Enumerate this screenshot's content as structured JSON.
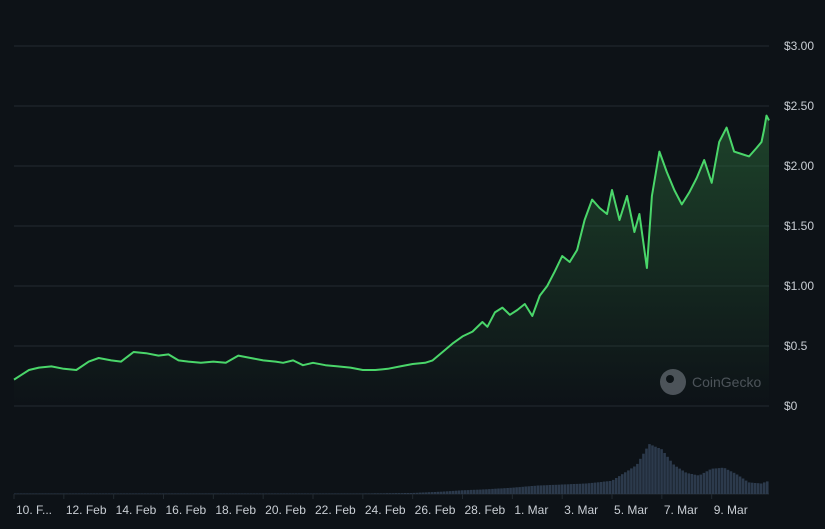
{
  "watermark": {
    "text": "CoinGecko",
    "icon": "coingecko-logo-icon"
  },
  "colors": {
    "background": "#0d1217",
    "gridline": "#222a31",
    "line": "#4ad66a",
    "area_top": "#2b6b3a",
    "volume": "#2c3a4c",
    "axis_text": "#c9ced4"
  },
  "chart_data": {
    "type": "line",
    "title": "",
    "xlabel": "",
    "ylabel": "",
    "ylim": [
      0,
      3.0
    ],
    "y_tick_labels": [
      {
        "value": 3.0,
        "label": "$3.00"
      },
      {
        "value": 2.5,
        "label": "$2.50"
      },
      {
        "value": 2.0,
        "label": "$2.00"
      },
      {
        "value": 1.5,
        "label": "$1.50"
      },
      {
        "value": 1.0,
        "label": "$1.00"
      },
      {
        "value": 0.5,
        "label": "$0.5"
      },
      {
        "value": 0.0,
        "label": "$0"
      }
    ],
    "xlim": [
      0,
      30.3
    ],
    "x_tick_labels": [
      {
        "x": 0,
        "label": "10. F..."
      },
      {
        "x": 2,
        "label": "12. Feb"
      },
      {
        "x": 4,
        "label": "14. Feb"
      },
      {
        "x": 6,
        "label": "16. Feb"
      },
      {
        "x": 8,
        "label": "18. Feb"
      },
      {
        "x": 10,
        "label": "20. Feb"
      },
      {
        "x": 12,
        "label": "22. Feb"
      },
      {
        "x": 14,
        "label": "24. Feb"
      },
      {
        "x": 16,
        "label": "26. Feb"
      },
      {
        "x": 18,
        "label": "28. Feb"
      },
      {
        "x": 20,
        "label": "1. Mar"
      },
      {
        "x": 22,
        "label": "3. Mar"
      },
      {
        "x": 24,
        "label": "5. Mar"
      },
      {
        "x": 26,
        "label": "7. Mar"
      },
      {
        "x": 28,
        "label": "9. Mar"
      }
    ],
    "series": [
      {
        "kind": "price",
        "x": [
          0,
          0.3,
          0.6,
          1.0,
          1.5,
          2.0,
          2.5,
          3.0,
          3.4,
          3.9,
          4.3,
          4.8,
          5.3,
          5.8,
          6.2,
          6.6,
          7.0,
          7.5,
          8.0,
          8.5,
          9.0,
          9.5,
          10.0,
          10.5,
          10.8,
          11.2,
          11.6,
          12.0,
          12.5,
          13.0,
          13.5,
          14.0,
          14.5,
          15.0,
          15.5,
          16.0,
          16.5,
          16.8,
          17.2,
          17.6,
          18.0,
          18.4,
          18.8,
          19.0,
          19.3,
          19.6,
          19.9,
          20.2,
          20.5,
          20.8,
          21.1,
          21.4,
          21.7,
          22.0,
          22.3,
          22.6,
          22.9,
          23.2,
          23.5,
          23.8,
          24.0,
          24.3,
          24.6,
          24.9,
          25.1,
          25.4,
          25.6,
          25.9,
          26.2,
          26.5,
          26.8,
          27.1,
          27.4,
          27.7,
          28.0,
          28.3,
          28.6,
          28.9,
          29.2,
          29.5,
          29.8,
          30.0,
          30.1,
          30.2,
          30.3
        ],
        "values": [
          0.22,
          0.26,
          0.3,
          0.32,
          0.33,
          0.31,
          0.3,
          0.37,
          0.4,
          0.38,
          0.37,
          0.45,
          0.44,
          0.42,
          0.43,
          0.38,
          0.37,
          0.36,
          0.37,
          0.36,
          0.42,
          0.4,
          0.38,
          0.37,
          0.36,
          0.38,
          0.34,
          0.36,
          0.34,
          0.33,
          0.32,
          0.3,
          0.3,
          0.31,
          0.33,
          0.35,
          0.36,
          0.38,
          0.45,
          0.52,
          0.58,
          0.62,
          0.7,
          0.66,
          0.78,
          0.82,
          0.76,
          0.8,
          0.85,
          0.75,
          0.92,
          1.0,
          1.12,
          1.25,
          1.2,
          1.3,
          1.55,
          1.72,
          1.65,
          1.6,
          1.8,
          1.55,
          1.75,
          1.45,
          1.6,
          1.15,
          1.75,
          2.12,
          1.95,
          1.8,
          1.68,
          1.78,
          1.9,
          2.05,
          1.86,
          2.2,
          2.32,
          2.12,
          2.1,
          2.08,
          2.15,
          2.2,
          2.3,
          2.42,
          2.38
        ]
      },
      {
        "kind": "volume",
        "x": [
          0,
          2,
          4,
          6,
          8,
          10,
          12,
          14,
          16,
          17,
          18,
          19,
          20,
          21,
          22,
          23,
          24,
          25,
          25.5,
          26,
          26.5,
          27,
          27.5,
          28,
          28.5,
          29,
          29.5,
          30,
          30.3
        ],
        "values": [
          0.01,
          0.01,
          0.01,
          0.01,
          0.01,
          0.01,
          0.01,
          0.01,
          0.02,
          0.04,
          0.07,
          0.09,
          0.12,
          0.16,
          0.18,
          0.2,
          0.25,
          0.55,
          0.95,
          0.85,
          0.55,
          0.4,
          0.35,
          0.48,
          0.5,
          0.38,
          0.22,
          0.2,
          0.25
        ]
      }
    ]
  }
}
